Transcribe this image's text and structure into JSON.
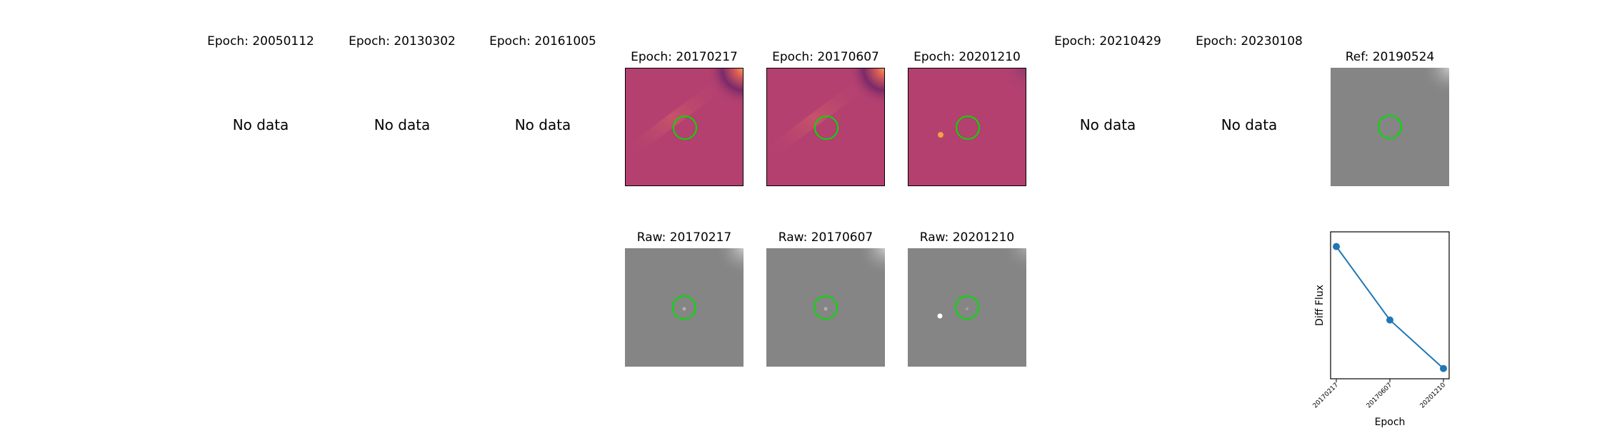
{
  "epochs": [
    {
      "title": "Epoch: 20050112",
      "status": "No data"
    },
    {
      "title": "Epoch: 20130302",
      "status": "No data"
    },
    {
      "title": "Epoch: 20161005",
      "status": "No data"
    },
    {
      "title": "Epoch: 20170217"
    },
    {
      "title": "Epoch: 20170607"
    },
    {
      "title": "Epoch: 20201210"
    },
    {
      "title": "Epoch: 20210429",
      "status": "No data"
    },
    {
      "title": "Epoch: 20230108",
      "status": "No data"
    }
  ],
  "ref": {
    "title": "Ref: 20190524"
  },
  "raw": [
    {
      "title": "Raw: 20170217"
    },
    {
      "title": "Raw: 20170607"
    },
    {
      "title": "Raw: 20201210"
    }
  ],
  "colors": {
    "diff_base": "#b3406f",
    "diff_hot": "#f6a04a",
    "raw_gray": "#858585",
    "aperture": "#00dd00",
    "series": "#1f77b4"
  },
  "chart_data": {
    "type": "line",
    "title": "",
    "xlabel": "Epoch",
    "ylabel": "Diff Flux",
    "categories": [
      "20170217",
      "20170607",
      "20201210"
    ],
    "values": [
      0.9,
      0.4,
      0.07
    ],
    "ylim": [
      0,
      1
    ],
    "grid": false,
    "legend": "none"
  }
}
